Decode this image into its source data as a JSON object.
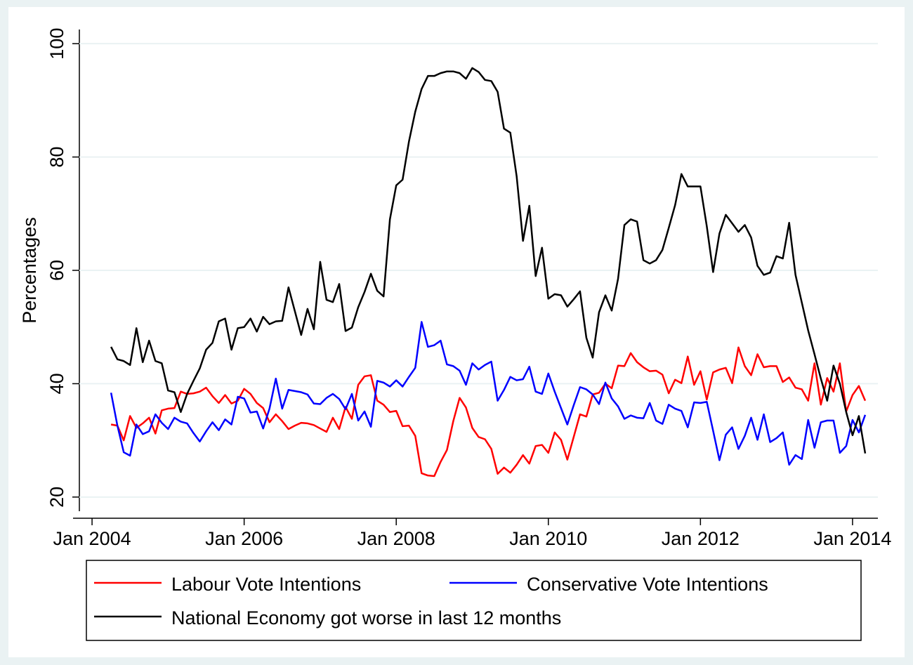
{
  "chart_data": {
    "type": "line",
    "y_label": "Percentages",
    "x": [
      "2004-04",
      "2004-05",
      "2004-06",
      "2004-07",
      "2004-08",
      "2004-09",
      "2004-10",
      "2004-11",
      "2004-12",
      "2005-01",
      "2005-02",
      "2005-03",
      "2005-04",
      "2005-05",
      "2005-06",
      "2005-07",
      "2005-08",
      "2005-09",
      "2005-10",
      "2005-11",
      "2005-12",
      "2006-01",
      "2006-02",
      "2006-03",
      "2006-04",
      "2006-05",
      "2006-06",
      "2006-07",
      "2006-08",
      "2006-09",
      "2006-10",
      "2006-11",
      "2006-12",
      "2007-01",
      "2007-02",
      "2007-03",
      "2007-04",
      "2007-05",
      "2007-06",
      "2007-07",
      "2007-08",
      "2007-09",
      "2007-10",
      "2007-11",
      "2007-12",
      "2008-01",
      "2008-02",
      "2008-03",
      "2008-04",
      "2008-05",
      "2008-06",
      "2008-07",
      "2008-08",
      "2008-09",
      "2008-10",
      "2008-11",
      "2008-12",
      "2009-01",
      "2009-02",
      "2009-03",
      "2009-04",
      "2009-05",
      "2009-06",
      "2009-07",
      "2009-08",
      "2009-09",
      "2009-10",
      "2009-11",
      "2009-12",
      "2010-01",
      "2010-02",
      "2010-03",
      "2010-04",
      "2010-05",
      "2010-06",
      "2010-07",
      "2010-08",
      "2010-09",
      "2010-10",
      "2010-11",
      "2010-12",
      "2011-01",
      "2011-02",
      "2011-03",
      "2011-04",
      "2011-05",
      "2011-06",
      "2011-07",
      "2011-08",
      "2011-09",
      "2011-10",
      "2011-11",
      "2011-12",
      "2012-01",
      "2012-02",
      "2012-03",
      "2012-04",
      "2012-05",
      "2012-06",
      "2012-07",
      "2012-08",
      "2012-09",
      "2012-10",
      "2012-11",
      "2012-12",
      "2013-01",
      "2013-02",
      "2013-03",
      "2013-04",
      "2013-05",
      "2013-06",
      "2013-07",
      "2013-08",
      "2013-09",
      "2013-10",
      "2013-11",
      "2013-12",
      "2014-01",
      "2014-02",
      "2014-03"
    ],
    "series": [
      {
        "name": "Labour Vote Intentions",
        "color": "#ff0000",
        "values": [
          32.8,
          32.6,
          30,
          34.3,
          32.2,
          33,
          34,
          31.2,
          35.3,
          35.6,
          35.7,
          38.6,
          38.2,
          38.3,
          38.6,
          39.3,
          37.8,
          36.6,
          38,
          36.5,
          37,
          39.1,
          38.2,
          36.6,
          35.7,
          33.2,
          34.6,
          33.4,
          32,
          32.6,
          33.1,
          33,
          32.7,
          32.1,
          31.5,
          34,
          32,
          35.9,
          33.8,
          39.8,
          41.3,
          41.5,
          37,
          36.3,
          35,
          35.2,
          32.5,
          32.6,
          30.8,
          24.2,
          23.8,
          23.7,
          26.2,
          28.3,
          33.4,
          37.5,
          35.8,
          32.2,
          30.6,
          30.2,
          28.5,
          24.1,
          25.2,
          24.3,
          25.7,
          27.4,
          25.9,
          29,
          29.2,
          27.8,
          31.4,
          30.1,
          26.6,
          30.6,
          34.6,
          34.2,
          38.1,
          38.4,
          40,
          39.2,
          43.2,
          43.1,
          45.4,
          43.8,
          42.9,
          42.2,
          42.3,
          41.6,
          38.3,
          40.7,
          40.1,
          44.8,
          39.8,
          42.2,
          37.2,
          42,
          42.5,
          42.8,
          40.1,
          46.4,
          43.1,
          41.5,
          45.2,
          42.9,
          43.1,
          43.1,
          40.3,
          41.1,
          39.3,
          39,
          37,
          43.6,
          36.3,
          41,
          38.6,
          43.6,
          35.1,
          38,
          39.6,
          37
        ]
      },
      {
        "name": "Conservative Vote Intentions",
        "color": "#0000ff",
        "values": [
          38.4,
          32.6,
          27.9,
          27.3,
          32.8,
          31.1,
          31.6,
          34.6,
          33.1,
          32,
          34,
          33.3,
          33,
          31.3,
          29.8,
          31.6,
          33.2,
          31.8,
          33.7,
          32.8,
          37.7,
          37.4,
          34.9,
          35.1,
          32.1,
          35.6,
          40.9,
          35.6,
          38.9,
          38.7,
          38.5,
          38.1,
          36.5,
          36.4,
          37.5,
          38.2,
          37.3,
          35.5,
          38.2,
          33.5,
          35.1,
          32.4,
          40.5,
          40.2,
          39.5,
          40.6,
          39.5,
          41.2,
          42.8,
          50.9,
          46.5,
          46.8,
          47.6,
          43.4,
          43.1,
          42.3,
          39.8,
          43.6,
          42.5,
          43.3,
          43.9,
          37,
          38.9,
          41.2,
          40.6,
          40.8,
          43,
          38.6,
          38.2,
          41.8,
          38.6,
          35.7,
          32.8,
          36.2,
          39.4,
          39,
          38.1,
          36.4,
          40.2,
          37.4,
          36,
          33.8,
          34.4,
          34,
          33.9,
          36.6,
          33.5,
          32.9,
          36.3,
          35.6,
          35.2,
          32.3,
          36.7,
          36.6,
          36.8,
          31.7,
          26.5,
          31,
          32.3,
          28.5,
          30.8,
          34,
          30.1,
          34.6,
          29.7,
          30.4,
          31.4,
          25.7,
          27.4,
          26.7,
          33.6,
          28.7,
          33.2,
          33.5,
          33.5,
          27.8,
          29,
          33.6,
          31.4,
          34.5
        ]
      },
      {
        "name": "National Economy got worse in last 12 months",
        "color": "#000000",
        "values": [
          46.5,
          44.3,
          44,
          43.3,
          49.8,
          43.8,
          47.6,
          44,
          43.6,
          38.8,
          38.5,
          35,
          38.2,
          40.5,
          42.7,
          46,
          47.2,
          51,
          51.5,
          46,
          49.8,
          50,
          51.5,
          49.2,
          51.8,
          50.5,
          51,
          51.1,
          57,
          52.8,
          48.6,
          53.2,
          49.6,
          61.5,
          54.8,
          54.4,
          57.6,
          49.3,
          49.9,
          53.5,
          56.2,
          59.4,
          56.4,
          55.4,
          69,
          75,
          76,
          82.7,
          88,
          92,
          94.3,
          94.3,
          94.8,
          95.1,
          95.1,
          94.8,
          93.8,
          95.7,
          95,
          93.6,
          93.4,
          91.5,
          85,
          84.3,
          76.6,
          65.2,
          71.4,
          59,
          64,
          55,
          55.8,
          55.6,
          53.6,
          54.9,
          56.3,
          48.1,
          44.6,
          52.6,
          55.6,
          52.9,
          58.5,
          68,
          69,
          68.6,
          61.8,
          61.2,
          61.8,
          63.6,
          67.5,
          71.5,
          77,
          74.8,
          74.8,
          74.8,
          67.8,
          59.7,
          66.5,
          69.8,
          68.3,
          66.8,
          68,
          65.8,
          60.8,
          59.2,
          59.6,
          62.5,
          62.1,
          68.4,
          59.2,
          54.3,
          49.4,
          45.2,
          40.9,
          37,
          43.2,
          40,
          35,
          30.9,
          34.3,
          27.7
        ]
      }
    ],
    "xlim": [
      "2003-10",
      "2014-05"
    ],
    "xticks": [
      {
        "value": "2004-01",
        "label": "Jan 2004"
      },
      {
        "value": "2006-01",
        "label": "Jan 2006"
      },
      {
        "value": "2008-01",
        "label": "Jan 2008"
      },
      {
        "value": "2010-01",
        "label": "Jan 2010"
      },
      {
        "value": "2012-01",
        "label": "Jan 2012"
      },
      {
        "value": "2014-01",
        "label": "Jan 2014"
      }
    ],
    "ylim": [
      17.5,
      102.5
    ],
    "yticks": [
      20,
      40,
      60,
      80,
      100
    ],
    "grid": true
  }
}
